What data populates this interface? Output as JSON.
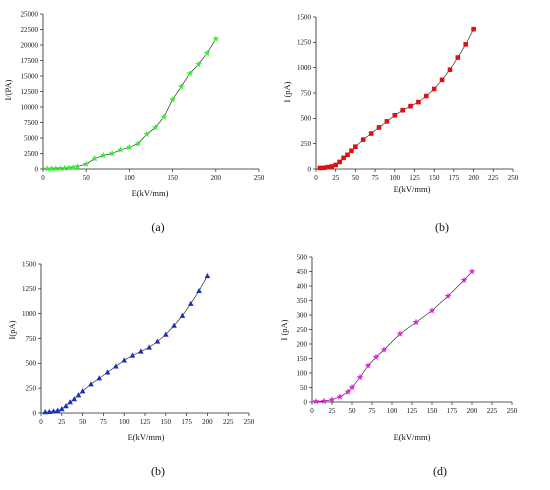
{
  "chart_data": [
    {
      "type": "line",
      "panel_label": "(a)",
      "xlabel": "E(kV/mm)",
      "ylabel": "I/(PA)",
      "x_ticks": [
        "0",
        "50",
        "100",
        "150",
        "200",
        "250"
      ],
      "y_ticks": [
        "0",
        "2500",
        "5000",
        "7500",
        "10000",
        "12500",
        "15000",
        "17500",
        "20000",
        "22500",
        "25000"
      ],
      "xlim": [
        0,
        250
      ],
      "ylim": [
        0,
        25000
      ],
      "marker": "star",
      "color": "#33ee33",
      "grid": false,
      "series": [
        {
          "x": [
            5,
            10,
            15,
            20,
            25,
            30,
            35,
            40,
            50,
            60,
            70,
            80,
            90,
            100,
            110,
            120,
            130,
            140,
            150,
            160,
            170,
            180,
            190,
            200
          ],
          "y": [
            50,
            60,
            80,
            100,
            130,
            180,
            250,
            400,
            800,
            1700,
            2200,
            2500,
            3100,
            3500,
            4100,
            5600,
            6700,
            8400,
            11200,
            13300,
            15400,
            16900,
            18700,
            21000
          ]
        }
      ]
    },
    {
      "type": "line",
      "panel_label": "(b)",
      "xlabel": "E(kV/mm)",
      "ylabel": "I (pA)",
      "x_ticks": [
        "0",
        "25",
        "50",
        "75",
        "100",
        "125",
        "150",
        "175",
        "200",
        "225",
        "250"
      ],
      "y_ticks": [
        "0",
        "250",
        "500",
        "750",
        "1000",
        "1250",
        "1500"
      ],
      "xlim": [
        0,
        250
      ],
      "ylim": [
        0,
        1500
      ],
      "marker": "square",
      "color": "#dd1111",
      "grid": false,
      "series": [
        {
          "x": [
            5,
            10,
            15,
            20,
            25,
            30,
            35,
            40,
            45,
            50,
            60,
            70,
            80,
            90,
            100,
            110,
            120,
            130,
            140,
            150,
            160,
            170,
            180,
            190,
            200
          ],
          "y": [
            10,
            12,
            18,
            25,
            40,
            70,
            110,
            140,
            180,
            220,
            290,
            350,
            410,
            470,
            530,
            580,
            620,
            660,
            720,
            790,
            880,
            980,
            1100,
            1230,
            1380
          ]
        }
      ]
    },
    {
      "type": "line",
      "panel_label": "(b)",
      "xlabel": "E(kV/mm)",
      "ylabel": "I(pA)",
      "x_ticks": [
        "0",
        "25",
        "50",
        "75",
        "100",
        "125",
        "150",
        "175",
        "200",
        "225",
        "250"
      ],
      "y_ticks": [
        "0",
        "250",
        "500",
        "750",
        "1000",
        "1250",
        "1500"
      ],
      "xlim": [
        0,
        250
      ],
      "ylim": [
        0,
        1500
      ],
      "marker": "triangle",
      "color": "#1a2fbf",
      "grid": false,
      "series": [
        {
          "x": [
            5,
            10,
            15,
            20,
            25,
            30,
            35,
            40,
            45,
            50,
            60,
            70,
            80,
            90,
            100,
            110,
            120,
            130,
            140,
            150,
            160,
            170,
            180,
            190,
            200
          ],
          "y": [
            10,
            12,
            18,
            25,
            40,
            70,
            110,
            140,
            180,
            220,
            290,
            350,
            410,
            470,
            530,
            580,
            620,
            660,
            720,
            790,
            880,
            980,
            1100,
            1230,
            1380
          ]
        }
      ]
    },
    {
      "type": "line",
      "panel_label": "(d)",
      "xlabel": "E(kV/mm)",
      "ylabel": "I (pA)",
      "x_ticks": [
        "0",
        "25",
        "50",
        "75",
        "100",
        "125",
        "150",
        "175",
        "200",
        "225",
        "250"
      ],
      "y_ticks": [
        "0",
        "50",
        "100",
        "150",
        "200",
        "250",
        "300",
        "350",
        "400",
        "450",
        "500"
      ],
      "xlim": [
        0,
        250
      ],
      "ylim": [
        0,
        500
      ],
      "marker": "star",
      "color": "#dd22dd",
      "grid": false,
      "series": [
        {
          "x": [
            5,
            15,
            25,
            35,
            45,
            50,
            60,
            70,
            80,
            90,
            110,
            130,
            150,
            170,
            190,
            200
          ],
          "y": [
            2,
            3,
            8,
            18,
            35,
            50,
            85,
            125,
            155,
            180,
            235,
            275,
            315,
            365,
            420,
            450
          ]
        }
      ]
    }
  ]
}
